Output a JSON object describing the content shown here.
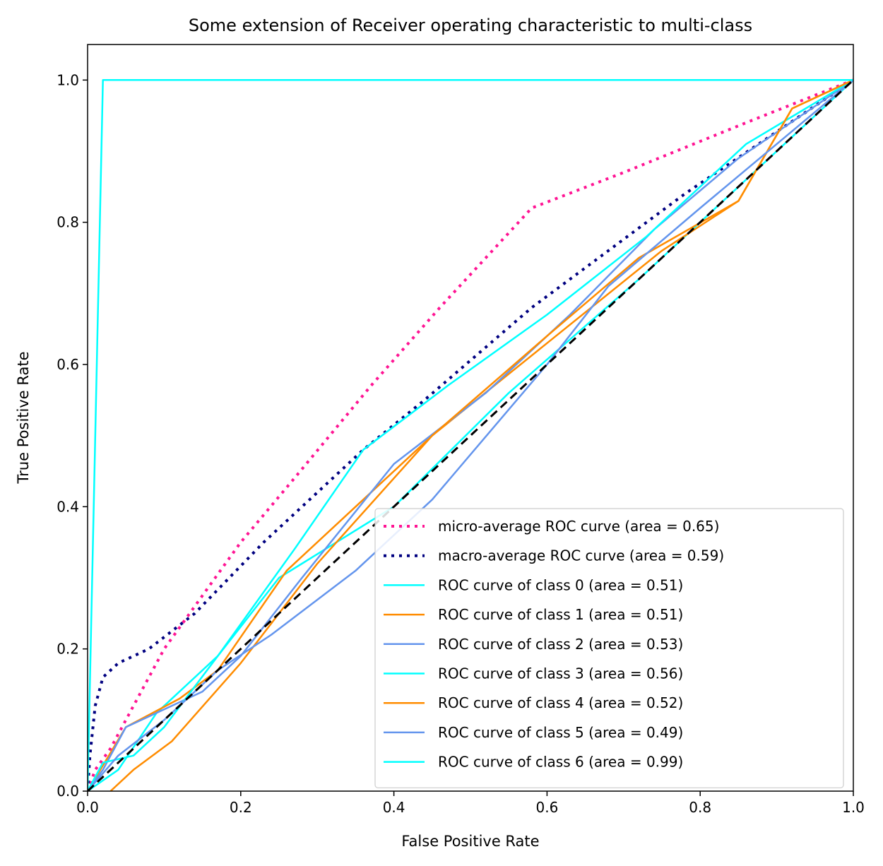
{
  "chart_data": {
    "type": "line",
    "title": "Some extension of Receiver operating characteristic to multi-class",
    "xlabel": "False Positive Rate",
    "ylabel": "True Positive Rate",
    "xlim": [
      0.0,
      1.0
    ],
    "ylim": [
      0.0,
      1.05
    ],
    "xticks": [
      "0.0",
      "0.2",
      "0.4",
      "0.6",
      "0.8",
      "1.0"
    ],
    "yticks": [
      "0.0",
      "0.2",
      "0.4",
      "0.6",
      "0.8",
      "1.0"
    ],
    "grid": false,
    "legend_position": "lower right",
    "series": [
      {
        "name": "micro-average ROC curve (area = 0.65)",
        "color": "#ff1493",
        "style": "dotted",
        "width": 4,
        "x": [
          0.0,
          0.01,
          0.03,
          0.06,
          0.1,
          0.16,
          0.2,
          0.27,
          0.37,
          0.46,
          0.52,
          0.58,
          0.7,
          0.86,
          1.0
        ],
        "y": [
          0.0,
          0.03,
          0.06,
          0.12,
          0.2,
          0.29,
          0.35,
          0.44,
          0.57,
          0.68,
          0.75,
          0.82,
          0.87,
          0.94,
          1.0
        ]
      },
      {
        "name": "macro-average ROC curve (area = 0.59)",
        "color": "#000080",
        "style": "dotted",
        "width": 4,
        "x": [
          0.0,
          0.003,
          0.01,
          0.02,
          0.04,
          0.08,
          0.14,
          0.23,
          0.36,
          0.44,
          0.58,
          0.78,
          1.0
        ],
        "y": [
          0.0,
          0.05,
          0.12,
          0.16,
          0.18,
          0.2,
          0.25,
          0.35,
          0.48,
          0.55,
          0.68,
          0.84,
          1.0
        ]
      },
      {
        "name": "ROC curve of class 0 (area = 0.51)",
        "color": "#00ffff",
        "style": "solid",
        "width": 2.5,
        "x": [
          0.0,
          0.04,
          0.09,
          0.17,
          0.25,
          0.4,
          0.55,
          0.72,
          0.85,
          1.0
        ],
        "y": [
          0.0,
          0.03,
          0.11,
          0.19,
          0.3,
          0.4,
          0.56,
          0.72,
          0.85,
          1.0
        ]
      },
      {
        "name": "ROC curve of class 1 (area = 0.51)",
        "color": "#ff8c00",
        "style": "solid",
        "width": 2.5,
        "x": [
          0.0,
          0.05,
          0.12,
          0.17,
          0.26,
          0.37,
          0.45,
          0.6,
          0.75,
          0.85,
          0.92,
          1.0
        ],
        "y": [
          0.0,
          0.09,
          0.13,
          0.17,
          0.31,
          0.42,
          0.5,
          0.63,
          0.76,
          0.83,
          0.96,
          1.0
        ]
      },
      {
        "name": "ROC curve of class 2 (area = 0.53)",
        "color": "#6495ed",
        "style": "solid",
        "width": 2.5,
        "x": [
          0.0,
          0.02,
          0.05,
          0.09,
          0.15,
          0.2,
          0.28,
          0.4,
          0.52,
          0.63,
          0.74,
          0.85,
          1.0
        ],
        "y": [
          0.0,
          0.03,
          0.09,
          0.11,
          0.14,
          0.19,
          0.3,
          0.46,
          0.56,
          0.67,
          0.79,
          0.89,
          1.0
        ]
      },
      {
        "name": "ROC curve of class 3 (area = 0.56)",
        "color": "#00ffff",
        "style": "solid",
        "width": 2.5,
        "x": [
          0.0,
          0.02,
          0.06,
          0.1,
          0.17,
          0.27,
          0.36,
          0.47,
          0.6,
          0.73,
          0.86,
          1.0
        ],
        "y": [
          0.0,
          0.04,
          0.05,
          0.09,
          0.19,
          0.34,
          0.48,
          0.57,
          0.67,
          0.78,
          0.91,
          1.0
        ]
      },
      {
        "name": "ROC curve of class 4 (area = 0.52)",
        "color": "#ff8c00",
        "style": "solid",
        "width": 2.5,
        "x": [
          0.03,
          0.06,
          0.11,
          0.2,
          0.3,
          0.45,
          0.6,
          0.72,
          0.85,
          0.92,
          1.0
        ],
        "y": [
          0.0,
          0.03,
          0.07,
          0.18,
          0.32,
          0.5,
          0.64,
          0.75,
          0.83,
          0.96,
          1.0
        ]
      },
      {
        "name": "ROC curve of class 5 (area = 0.49)",
        "color": "#6495ed",
        "style": "solid",
        "width": 2.5,
        "x": [
          0.0,
          0.04,
          0.1,
          0.17,
          0.24,
          0.35,
          0.45,
          0.6,
          0.68,
          0.8,
          1.0
        ],
        "y": [
          0.0,
          0.05,
          0.1,
          0.17,
          0.22,
          0.31,
          0.41,
          0.6,
          0.71,
          0.82,
          1.0
        ]
      },
      {
        "name": "ROC curve of class 6 (area = 0.99)",
        "color": "#00ffff",
        "style": "solid",
        "width": 2.5,
        "x": [
          0.0,
          0.02,
          1.0
        ],
        "y": [
          0.0,
          1.0,
          1.0
        ]
      }
    ],
    "reference_line": {
      "color": "#000000",
      "style": "dashed",
      "x": [
        0.0,
        1.0
      ],
      "y": [
        0.0,
        1.0
      ]
    }
  }
}
